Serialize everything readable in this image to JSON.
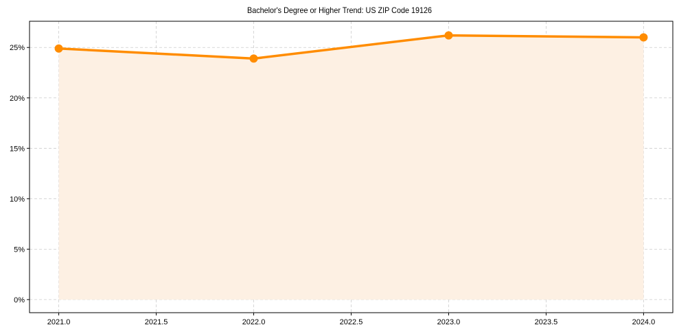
{
  "chart_data": {
    "type": "line",
    "title": "Bachelor's Degree or Higher Trend: US ZIP Code 19126",
    "xlabel": "",
    "ylabel": "",
    "x": [
      2021,
      2022,
      2023,
      2024
    ],
    "series": [
      {
        "name": "Bachelor's Degree or Higher",
        "values": [
          24.9,
          23.9,
          26.2,
          26.0
        ],
        "color": "#ff8c00",
        "fill": "#fdf0e3"
      }
    ],
    "xticks": [
      "2021.0",
      "2021.5",
      "2022.0",
      "2022.5",
      "2023.0",
      "2023.5",
      "2024.0"
    ],
    "yticks": [
      "0%",
      "5%",
      "10%",
      "15%",
      "20%",
      "25%"
    ],
    "xlim": [
      2020.85,
      2024.15
    ],
    "ylim": [
      -1.3,
      27.6
    ],
    "grid": true,
    "grid_style": "dashed",
    "legend": false,
    "area_fill": true
  }
}
